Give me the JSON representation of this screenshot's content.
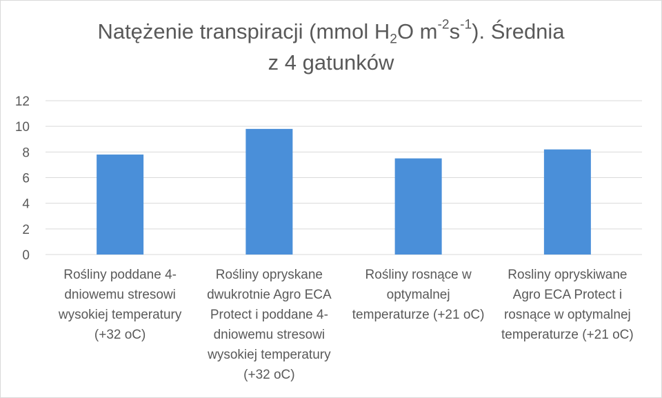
{
  "chart_data": {
    "type": "bar",
    "title": {
      "line1_a": "Natężenie transpiracji (mmol H",
      "line1_sub": "2",
      "line1_b": "O m",
      "line1_sup1": "-2",
      "line1_c": "s",
      "line1_sup2": "-1",
      "line1_d": "). Średnia",
      "line2": "z 4 gatunków"
    },
    "categories": [
      "Rośliny poddane 4-dniowemu stresowi wysokiej temperatury (+32 oC)",
      "Rośliny opryskane dwukrotnie Agro ECA Protect i poddane 4-dniowemu stresowi wysokiej temperatury (+32 oC)",
      "Rośliny rosnące w optymalnej temperaturze (+21 oC)",
      "Rosliny opryskiwane Agro ECA Protect  i rosnące w optymalnej temperaturze (+21 oC)"
    ],
    "category_lines": [
      [
        "Rośliny poddane 4-",
        "dniowemu stresowi",
        "wysokiej temperatury",
        "(+32 oC)"
      ],
      [
        "Rośliny opryskane",
        "dwukrotnie Agro ECA",
        "Protect i poddane 4-",
        "dniowemu stresowi",
        "wysokiej temperatury",
        "(+32 oC)"
      ],
      [
        "Rośliny rosnące w",
        "optymalnej",
        "temperaturze (+21 oC)"
      ],
      [
        "Rosliny opryskiwane",
        "Agro ECA Protect  i",
        "rosnące w optymalnej",
        "temperaturze (+21 oC)"
      ]
    ],
    "values": [
      7.8,
      9.8,
      7.5,
      8.2
    ],
    "ylim": [
      0,
      12
    ],
    "yticks": [
      "0",
      "2",
      "4",
      "6",
      "8",
      "10",
      "12"
    ],
    "xlabel": "",
    "ylabel": "",
    "grid": true,
    "legend": "none",
    "bar_color": "#4a8fd9",
    "grid_color": "#d9d9d9"
  }
}
